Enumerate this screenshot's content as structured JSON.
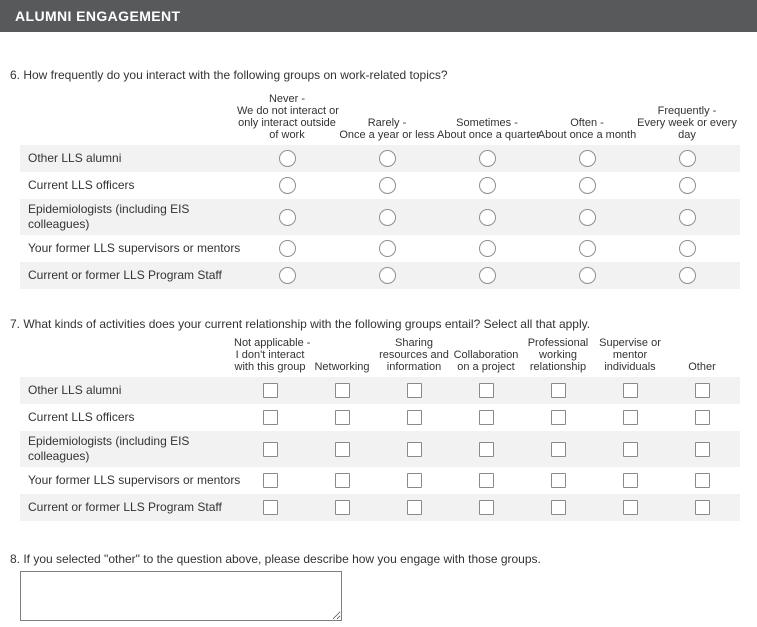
{
  "header": {
    "title": "ALUMNI ENGAGEMENT",
    "background_color": "#58595b",
    "text_color": "#ffffff"
  },
  "colors": {
    "row_alternate_bg": "#f2f2f2",
    "control_border": "#8f8f8f",
    "body_text": "#333333"
  },
  "questions": {
    "q6": {
      "text": "6. How frequently do you interact with the following groups on work-related topics?",
      "control_type": "radio",
      "columns": [
        "Never -\nWe do not interact or\nonly interact outside\nof work",
        "Rarely -\nOnce a year or less",
        "Sometimes -\nAbout once a quarter",
        "Often -\nAbout once a month",
        "Frequently -\nEvery week or every\nday"
      ],
      "rows": [
        "Other LLS alumni",
        "Current LLS officers",
        "Epidemiologists (including EIS\ncolleagues)",
        "Your former LLS supervisors or mentors",
        "Current or former LLS Program Staff"
      ],
      "selected": []
    },
    "q7": {
      "text": "7. What kinds of activities does your current relationship with the following groups entail? Select all that apply.",
      "control_type": "checkbox",
      "columns": [
        "Not applicable -\nI don't interact\nwith this group",
        "Networking",
        "Sharing\nresources and\ninformation",
        "Collaboration\non a project",
        "Professional\nworking\nrelationship",
        "Supervise or\nmentor\nindividuals",
        "Other"
      ],
      "rows": [
        "Other LLS alumni",
        "Current LLS officers",
        "Epidemiologists (including EIS\ncolleagues)",
        "Your former LLS supervisors or mentors",
        "Current or former LLS Program Staff"
      ],
      "selected": []
    },
    "q8": {
      "text": "8. If you selected \"other\" to the question above, please describe how you engage with those groups.",
      "control_type": "textarea",
      "value": ""
    }
  }
}
